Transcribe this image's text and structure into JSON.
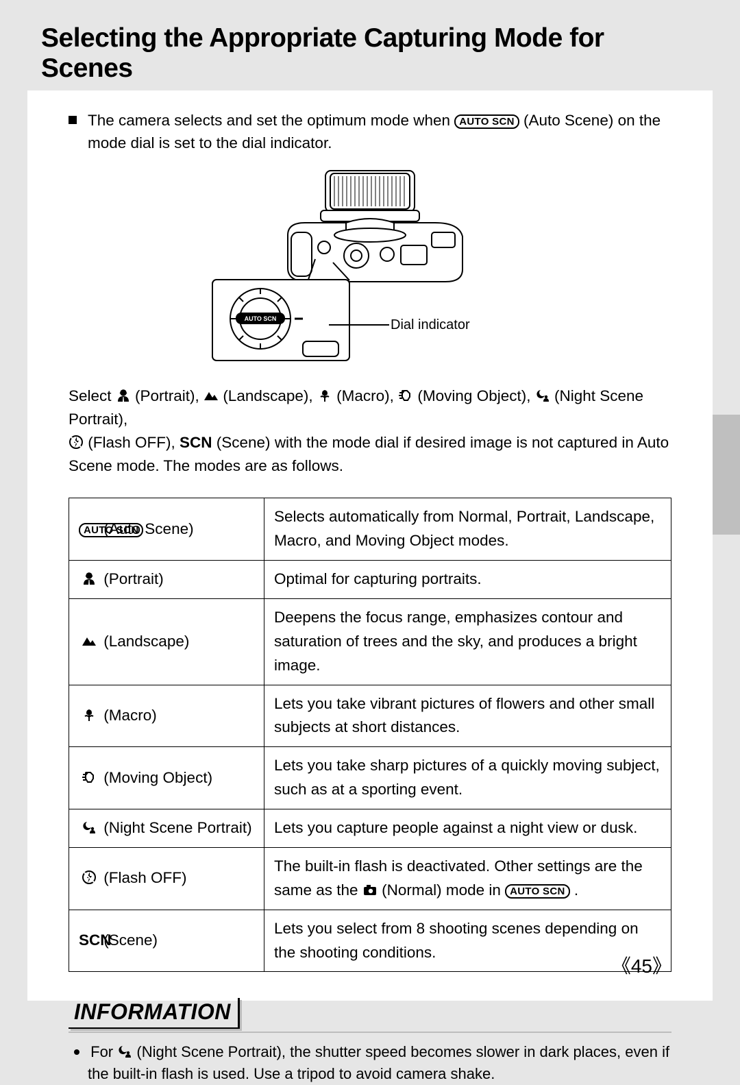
{
  "title": "Selecting the Appropriate Capturing Mode for Scenes",
  "intro": {
    "before_pill": "The camera selects and set the optimum mode when ",
    "autoscn_label": "AUTO SCN",
    "after_pill": " (Auto Scene) on the mode dial is set to the dial indicator."
  },
  "figure": {
    "dial_indicator_label": "Dial indicator"
  },
  "select_para": {
    "lead": "Select ",
    "mode_labels": {
      "portrait": " (Portrait), ",
      "landscape": " (Landscape),  ",
      "macro": " (Macro), ",
      "moving": " (Moving Object),  ",
      "night": " (Night Scene Portrait),",
      "flash_off": " (Flash OFF), ",
      "scn": " (Scene) "
    },
    "scn_bold": "SCN",
    "tail": "with the mode dial if desired image is not captured in Auto Scene mode. The modes are as follows."
  },
  "table_rows": [
    {
      "mode_kind": "autoscn",
      "mode_label": "(Auto Scene)",
      "desc": "Selects automatically from Normal, Portrait, Landscape, Macro, and Moving Object modes."
    },
    {
      "mode_kind": "portrait",
      "mode_label": "(Portrait)",
      "desc": "Optimal for capturing portraits."
    },
    {
      "mode_kind": "landscape",
      "mode_label": "(Landscape)",
      "desc": "Deepens the focus range, emphasizes contour and saturation of trees and the sky, and produces a bright image."
    },
    {
      "mode_kind": "macro",
      "mode_label": "(Macro)",
      "desc": "Lets you take vibrant pictures of flowers and other small subjects at short distances."
    },
    {
      "mode_kind": "moving",
      "mode_label": "(Moving Object)",
      "desc": "Lets you take sharp pictures of a quickly moving subject, such as at a sporting event."
    },
    {
      "mode_kind": "night",
      "mode_label": "(Night Scene Portrait)",
      "desc": "Lets you capture people against a night view or dusk."
    },
    {
      "mode_kind": "flashoff",
      "mode_label": "(Flash OFF)",
      "desc_pre": "The built-in flash is deactivated. Other settings are the same as the ",
      "desc_mid": " (Normal) mode in ",
      "desc_post": " ."
    },
    {
      "mode_kind": "scn",
      "mode_label": "(Scene)",
      "scn_bold": "SCN",
      "desc": "Lets you select from 8 shooting scenes depending on the shooting conditions."
    }
  ],
  "info": {
    "heading": "INFORMATION",
    "body_pre": "For ",
    "body_post": " (Night Scene Portrait), the shutter speed becomes slower in dark places, even if the built-in flash is used. Use a tripod to avoid camera shake."
  },
  "page_number": "45",
  "colors": {
    "page_bg": "#ffffff",
    "outer_bg": "#e6e6e6",
    "side_tab": "#bfbfbf",
    "rule_gray": "#bdbdbd",
    "text": "#000000"
  },
  "icons": {
    "portrait": "portrait-icon",
    "landscape": "landscape-icon",
    "macro": "macro-icon",
    "moving": "moving-object-icon",
    "night": "night-portrait-icon",
    "flashoff": "flash-off-icon",
    "normal": "camera-normal-icon",
    "scn": "scn-text-icon",
    "autoscn": "auto-scn-pill"
  }
}
